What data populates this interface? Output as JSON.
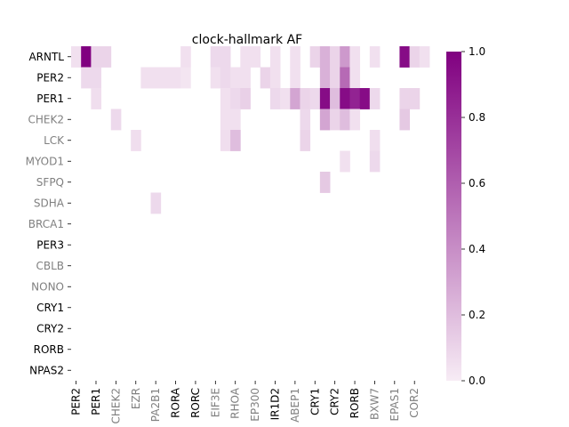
{
  "chart_data": {
    "type": "heatmap",
    "title": "clock-hallmark AF",
    "xlabel": "",
    "ylabel": "",
    "colormap": {
      "low": "#f7ecf5",
      "high": "#800080"
    },
    "color_range": [
      0,
      1
    ],
    "colorbar_ticks": [
      "0.0",
      "0.2",
      "0.4",
      "0.6",
      "0.8",
      "1.0"
    ],
    "row_labels": [
      "ARNTL",
      "PER2",
      "PER1",
      "CHEK2",
      "LCK",
      "MYOD1",
      "SFPQ",
      "SDHA",
      "BRCA1",
      "PER3",
      "CBLB",
      "NONO",
      "CRY1",
      "CRY2",
      "RORB",
      "NPAS2"
    ],
    "row_label_colors": [
      "#000000",
      "#000000",
      "#000000",
      "#808080",
      "#808080",
      "#808080",
      "#808080",
      "#808080",
      "#808080",
      "#000000",
      "#808080",
      "#808080",
      "#000000",
      "#000000",
      "#000000",
      "#000000"
    ],
    "col_tick_labels": [
      "PER2",
      "PER1",
      "CHEK2",
      "EZR",
      "PA2B1",
      "RORA",
      "RORC",
      "EIF3E",
      "RHOA",
      "EP300",
      "IR1D2",
      "ABEP1",
      "CRY1",
      "CRY2",
      "RORB",
      "BXW7",
      "EPAS1",
      "COR2"
    ],
    "col_tick_colors": [
      "#000000",
      "#000000",
      "#808080",
      "#808080",
      "#808080",
      "#000000",
      "#000000",
      "#808080",
      "#808080",
      "#808080",
      "#000000",
      "#808080",
      "#000000",
      "#000000",
      "#000000",
      "#808080",
      "#808080",
      "#808080"
    ],
    "n_cols": 36,
    "col_tick_every": 2,
    "values": [
      [
        0.05,
        1.0,
        0.1,
        0.1,
        0,
        0,
        0,
        0,
        0,
        0,
        0,
        0.05,
        0,
        0,
        0.08,
        0.08,
        0,
        0.05,
        0.05,
        0,
        0.05,
        0,
        0.05,
        0,
        0.1,
        0.25,
        0.1,
        0.35,
        0.05,
        0,
        0.05,
        0,
        0,
        0.95,
        0.1,
        0.05
      ],
      [
        0,
        0.08,
        0.08,
        0,
        0,
        0,
        0,
        0.05,
        0.05,
        0.05,
        0.05,
        0.03,
        0,
        0,
        0.05,
        0.08,
        0.05,
        0.05,
        0,
        0.1,
        0.05,
        0,
        0.05,
        0,
        0,
        0.25,
        0.1,
        0.55,
        0.05,
        0,
        0,
        0,
        0,
        0,
        0,
        0
      ],
      [
        0,
        0,
        0.06,
        0,
        0,
        0,
        0,
        0,
        0,
        0,
        0,
        0,
        0,
        0,
        0,
        0.05,
        0.08,
        0.12,
        0,
        0,
        0.08,
        0.05,
        0.3,
        0.1,
        0.08,
        0.95,
        0.2,
        0.95,
        0.85,
        0.95,
        0.08,
        0,
        0,
        0.1,
        0.1,
        0
      ],
      [
        0,
        0,
        0,
        0,
        0.08,
        0,
        0,
        0,
        0,
        0,
        0,
        0,
        0,
        0,
        0,
        0.05,
        0.05,
        0,
        0,
        0,
        0,
        0,
        0,
        0.08,
        0,
        0.3,
        0.1,
        0.2,
        0.05,
        0,
        0,
        0,
        0,
        0.15,
        0,
        0
      ],
      [
        0,
        0,
        0,
        0,
        0,
        0,
        0.06,
        0,
        0,
        0,
        0,
        0,
        0,
        0,
        0,
        0.06,
        0.2,
        0,
        0,
        0,
        0,
        0,
        0,
        0.1,
        0,
        0,
        0,
        0,
        0,
        0,
        0.06,
        0,
        0,
        0,
        0,
        0
      ],
      [
        0,
        0,
        0,
        0,
        0,
        0,
        0,
        0,
        0,
        0,
        0,
        0,
        0,
        0,
        0,
        0,
        0,
        0,
        0,
        0,
        0,
        0,
        0,
        0,
        0,
        0,
        0,
        0.05,
        0,
        0,
        0.08,
        0,
        0,
        0,
        0,
        0
      ],
      [
        0,
        0,
        0,
        0,
        0,
        0,
        0,
        0,
        0,
        0,
        0,
        0,
        0,
        0,
        0,
        0,
        0,
        0,
        0,
        0,
        0,
        0,
        0,
        0,
        0,
        0.15,
        0,
        0,
        0,
        0,
        0,
        0,
        0,
        0,
        0,
        0
      ],
      [
        0,
        0,
        0,
        0,
        0,
        0,
        0,
        0,
        0.08,
        0,
        0,
        0,
        0,
        0,
        0,
        0,
        0,
        0,
        0,
        0,
        0,
        0,
        0,
        0,
        0,
        0,
        0,
        0,
        0,
        0,
        0,
        0,
        0,
        0,
        0,
        0
      ],
      [
        0,
        0,
        0,
        0,
        0,
        0,
        0,
        0,
        0,
        0,
        0,
        0,
        0,
        0,
        0,
        0,
        0,
        0,
        0,
        0,
        0,
        0,
        0,
        0,
        0,
        0,
        0,
        0,
        0,
        0,
        0,
        0,
        0,
        0,
        0,
        0
      ],
      [
        0,
        0,
        0,
        0,
        0,
        0,
        0,
        0,
        0,
        0,
        0,
        0,
        0,
        0,
        0,
        0,
        0,
        0,
        0,
        0,
        0,
        0,
        0,
        0,
        0,
        0,
        0,
        0,
        0,
        0,
        0,
        0,
        0,
        0,
        0,
        0
      ],
      [
        0,
        0,
        0,
        0,
        0,
        0,
        0,
        0,
        0,
        0,
        0,
        0,
        0,
        0,
        0,
        0,
        0,
        0,
        0,
        0,
        0,
        0,
        0,
        0,
        0,
        0,
        0,
        0,
        0,
        0,
        0,
        0,
        0,
        0,
        0,
        0
      ],
      [
        0,
        0,
        0,
        0,
        0,
        0,
        0,
        0,
        0,
        0,
        0,
        0,
        0,
        0,
        0,
        0,
        0,
        0,
        0,
        0,
        0,
        0,
        0,
        0,
        0,
        0,
        0,
        0,
        0,
        0,
        0,
        0,
        0,
        0,
        0,
        0
      ],
      [
        0,
        0,
        0,
        0,
        0,
        0,
        0,
        0,
        0,
        0,
        0,
        0,
        0,
        0,
        0,
        0,
        0,
        0,
        0,
        0,
        0,
        0,
        0,
        0,
        0,
        0,
        0,
        0,
        0,
        0,
        0,
        0,
        0,
        0,
        0,
        0
      ],
      [
        0,
        0,
        0,
        0,
        0,
        0,
        0,
        0,
        0,
        0,
        0,
        0,
        0,
        0,
        0,
        0,
        0,
        0,
        0,
        0,
        0,
        0,
        0,
        0,
        0,
        0,
        0,
        0,
        0,
        0,
        0,
        0,
        0,
        0,
        0,
        0
      ],
      [
        0,
        0,
        0,
        0,
        0,
        0,
        0,
        0,
        0,
        0,
        0,
        0,
        0,
        0,
        0,
        0,
        0,
        0,
        0,
        0,
        0,
        0,
        0,
        0,
        0,
        0,
        0,
        0,
        0,
        0,
        0,
        0,
        0,
        0,
        0,
        0
      ],
      [
        0,
        0,
        0,
        0,
        0,
        0,
        0,
        0,
        0,
        0,
        0,
        0,
        0,
        0,
        0,
        0,
        0,
        0,
        0,
        0,
        0,
        0,
        0,
        0,
        0,
        0,
        0,
        0,
        0,
        0,
        0,
        0,
        0,
        0,
        0,
        0
      ]
    ]
  }
}
